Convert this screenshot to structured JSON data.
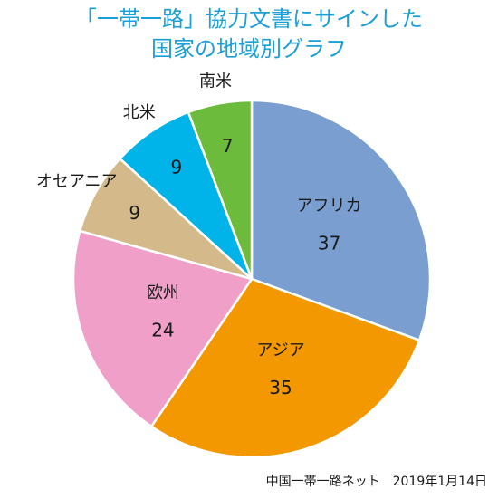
{
  "chart_data": {
    "type": "pie",
    "title_lines": [
      "「一帯一路」協力文書にサインした",
      "国家の地域別グラフ"
    ],
    "categories": [
      "アフリカ",
      "アジア",
      "欧州",
      "オセアニア",
      "北米",
      "南米"
    ],
    "values": [
      37,
      35,
      24,
      9,
      9,
      7
    ],
    "value_labels": [
      "37",
      "35",
      "24",
      "9",
      "9",
      "7"
    ],
    "colors": [
      "#7b9ed1",
      "#f39800",
      "#f0a0c8",
      "#d4b98b",
      "#00b4ea",
      "#6dbb3c"
    ],
    "label_placement": [
      "inside",
      "inside",
      "inside",
      "outside",
      "outside",
      "outside"
    ],
    "start_angle_deg": 0,
    "direction": "clockwise",
    "legend": "none",
    "source": "中国一帯一路ネット　2019年1月14日"
  }
}
